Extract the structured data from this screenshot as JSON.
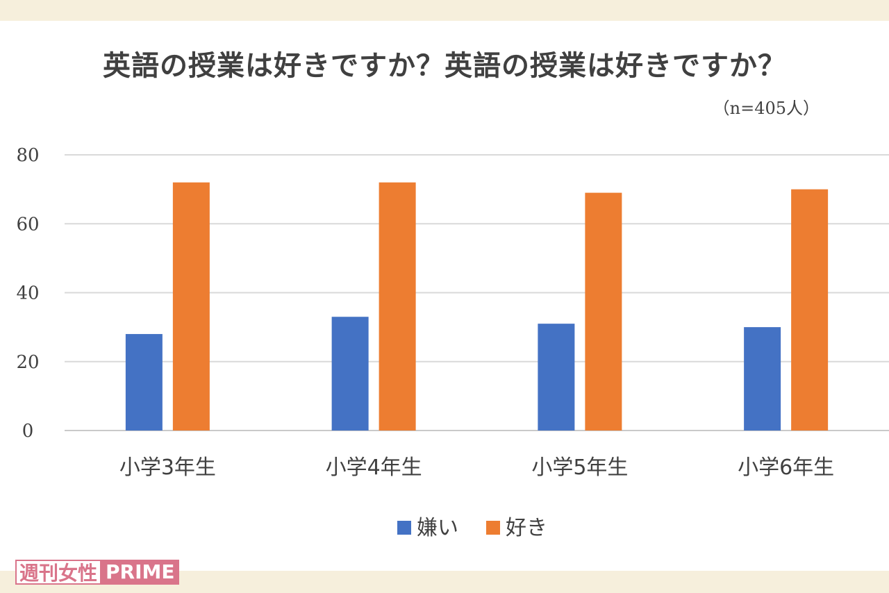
{
  "chart_data": {
    "type": "bar",
    "title": "英語の授業は好きですか？英語の授業は好きですか？",
    "subtitle": "（n=405人）",
    "categories": [
      "小学3年生",
      "小学4年生",
      "小学5年生",
      "小学6年生"
    ],
    "series": [
      {
        "name": "嫌い",
        "color": "#4472c4",
        "values": [
          28,
          33,
          31,
          30
        ]
      },
      {
        "name": "好き",
        "color": "#ed7d31",
        "values": [
          72,
          72,
          69,
          70
        ]
      }
    ],
    "ylim": [
      0,
      80
    ],
    "yticks": [
      0,
      20,
      40,
      60,
      80
    ],
    "xlabel": "",
    "ylabel": "",
    "grid": true,
    "legend": "bottom-center"
  },
  "watermark": {
    "part1": "週刊女性",
    "part2": "PRIME"
  }
}
